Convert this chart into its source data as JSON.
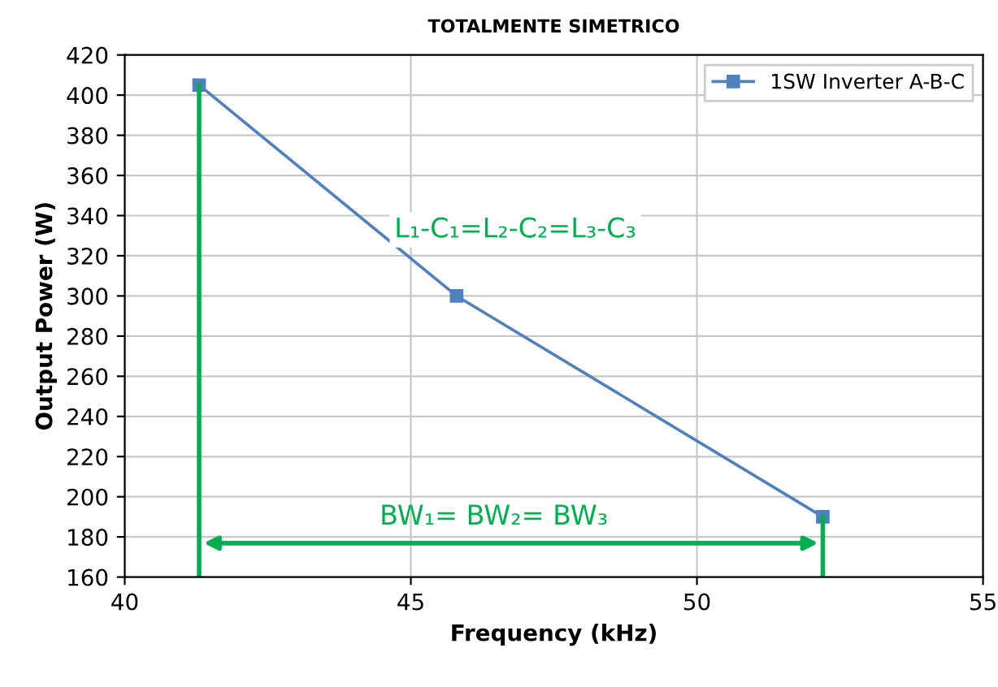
{
  "chart_data": {
    "type": "line",
    "title": "TOTALMENTE SIMETRICO",
    "xlabel": "Frequency (kHz)",
    "ylabel": "Output Power (W)",
    "x": [
      41.3,
      45.8,
      52.2
    ],
    "series": [
      {
        "name": "1SW Inverter A-B-C",
        "color": "#4f81bd",
        "values": [
          405,
          300,
          190
        ]
      }
    ],
    "xlim": [
      40,
      55
    ],
    "xticks": [
      40,
      45,
      50,
      55
    ],
    "ylim": [
      160,
      420
    ],
    "yticks": [
      160,
      180,
      200,
      220,
      240,
      260,
      280,
      300,
      320,
      340,
      360,
      380,
      400,
      420
    ],
    "grid": true,
    "legend": "top right",
    "marker": "square",
    "line_style": "solid",
    "ref_lines": [
      {
        "axis": "x",
        "value": 41.3,
        "color": "#00b050"
      },
      {
        "axis": "x",
        "value": 52.2,
        "color": "#00b050"
      }
    ],
    "annotations": [
      "L₁-C₁=L₂-C₂=L₃-C₃",
      "BW₁= BW₂= BW₃"
    ]
  }
}
